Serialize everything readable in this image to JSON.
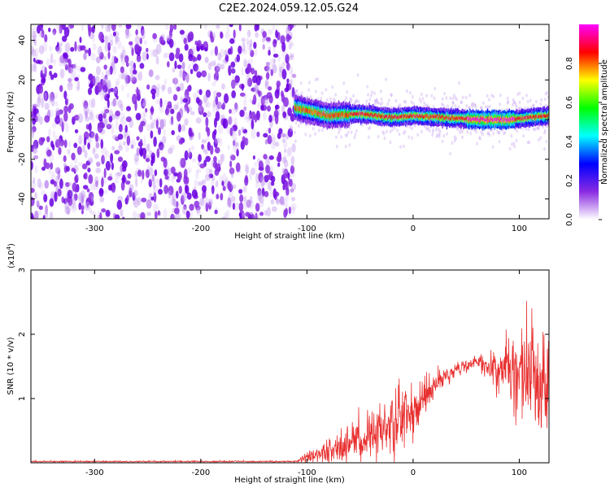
{
  "title": "C2E2.2024.059.12.05.G24",
  "chart_data": [
    {
      "type": "heatmap",
      "xlabel": "Height of straight line (km)",
      "ylabel": "Frequency (Hz)",
      "xlim": [
        -360,
        128
      ],
      "ylim": [
        -50,
        48
      ],
      "xticks": [
        -300,
        -200,
        -100,
        0,
        100
      ],
      "yticks": [
        -40,
        -20,
        0,
        20,
        40
      ],
      "noise_region": [
        -360,
        -112
      ],
      "signal_ridge": {
        "x": [
          -112,
          -80,
          -50,
          -20,
          0,
          30,
          60,
          90,
          128
        ],
        "y": [
          6,
          2,
          3,
          1,
          2,
          1,
          0,
          0,
          2
        ]
      },
      "colorbar": {
        "label": "Normalized spectral amplitude",
        "range": [
          0,
          1
        ],
        "ticks": [
          "0.0",
          "0.2",
          "0.4",
          "0.6",
          "0.8"
        ],
        "colors": [
          "#ffffff",
          "#8a2be2",
          "#0000ff",
          "#00ffff",
          "#00ff00",
          "#ffff00",
          "#ff0000",
          "#ff00ff"
        ]
      }
    },
    {
      "type": "line",
      "xlabel": "Height of straight line (km)",
      "ylabel": "SNR (10 * v/v)",
      "exponent": "(x10",
      "exponent_power": "4",
      "exponent_close": ")",
      "xlim": [
        -360,
        128
      ],
      "ylim": [
        0,
        3
      ],
      "xticks": [
        -300,
        -200,
        -100,
        0,
        100
      ],
      "yticks": [
        1,
        2,
        3
      ],
      "color": "#e83030",
      "envelope": {
        "x": [
          -360,
          -110,
          -100,
          -80,
          -60,
          -40,
          -20,
          0,
          20,
          40,
          60,
          80,
          95,
          110,
          128
        ],
        "mean": [
          0.02,
          0.02,
          0.08,
          0.18,
          0.28,
          0.45,
          0.6,
          0.85,
          1.2,
          1.45,
          1.55,
          1.5,
          1.4,
          1.35,
          1.3
        ],
        "spread": [
          0.01,
          0.01,
          0.08,
          0.22,
          0.3,
          0.38,
          0.45,
          0.5,
          0.2,
          0.1,
          0.1,
          0.3,
          0.6,
          0.8,
          0.85
        ]
      }
    }
  ]
}
